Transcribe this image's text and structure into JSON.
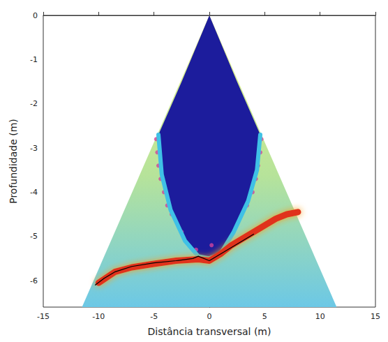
{
  "chart_data": {
    "type": "scatter",
    "x_label": "Distância transversal (m)",
    "y_label": "Profundidade (m)",
    "xlim": [
      -15,
      15
    ],
    "xticks": [
      -15,
      -10,
      -5,
      0,
      5,
      10,
      15
    ],
    "ylim": [
      -6.6,
      0
    ],
    "yticks": [
      -6,
      -5,
      -4,
      -3,
      -2,
      -1,
      0
    ],
    "grid": false,
    "series": [
      {
        "type": "polygon",
        "color": "#b6e39a",
        "x": [
          0,
          -11.5,
          11.5
        ],
        "values": [
          0,
          -6.6,
          -6.6
        ]
      },
      {
        "type": "polygon",
        "color": "#1c1c9c",
        "x": [
          0,
          -2.5,
          -4.6,
          -4.3,
          -3.5,
          -2.2,
          -1,
          0,
          1,
          2.2,
          3.5,
          4.3,
          4.6,
          2.5
        ],
        "values": [
          0,
          -1.5,
          -2.7,
          -3.6,
          -4.4,
          -5.1,
          -5.45,
          -5.5,
          -5.4,
          -4.9,
          -4.2,
          -3.5,
          -2.7,
          -1.5
        ]
      },
      {
        "type": "line",
        "color": "#3fc1e6",
        "line_style": "solid",
        "x": [
          -4.6,
          -4.3,
          -3.5,
          -2.2,
          -1,
          0,
          1,
          2.2,
          3.5,
          4.3,
          4.6
        ],
        "values": [
          -2.7,
          -3.6,
          -4.4,
          -5.1,
          -5.45,
          -5.5,
          -5.4,
          -4.9,
          -4.2,
          -3.5,
          -2.7
        ]
      },
      {
        "type": "line",
        "color": "#e0301c",
        "line_style": "solid",
        "x": [
          -10,
          -8.5,
          -7,
          -5,
          -3,
          -1,
          0,
          1,
          2,
          3,
          4,
          5,
          6,
          7,
          8
        ],
        "values": [
          -6.05,
          -5.8,
          -5.7,
          -5.62,
          -5.55,
          -5.52,
          -5.55,
          -5.4,
          -5.2,
          -5.05,
          -4.9,
          -4.75,
          -4.6,
          -4.5,
          -4.45
        ]
      },
      {
        "type": "line",
        "color": "#000000",
        "line_style": "solid",
        "x": [
          -10.3,
          -9.5,
          -8.5,
          -7,
          -5,
          -3,
          -1.5,
          -1,
          0,
          1,
          2,
          3,
          4
        ],
        "values": [
          -6.1,
          -5.95,
          -5.8,
          -5.68,
          -5.6,
          -5.55,
          -5.5,
          -5.45,
          -5.55,
          -5.4,
          -5.25,
          -5.1,
          -4.95
        ]
      },
      {
        "type": "scatter",
        "color": "#d0449e",
        "marker": "circle",
        "x": [
          -4.8,
          -4.7,
          -4.6,
          -4.4,
          -4.1,
          -3.8,
          -3.4,
          -2.5,
          -1.2,
          4.7,
          4.6,
          4.4,
          4.2,
          3.9,
          3.4,
          0.2
        ],
        "values": [
          -2.8,
          -3.1,
          -3.4,
          -3.7,
          -4.0,
          -4.3,
          -4.5,
          -4.9,
          -5.3,
          -2.8,
          -3.1,
          -3.4,
          -3.7,
          -4.0,
          -4.3,
          -5.2
        ]
      }
    ]
  }
}
